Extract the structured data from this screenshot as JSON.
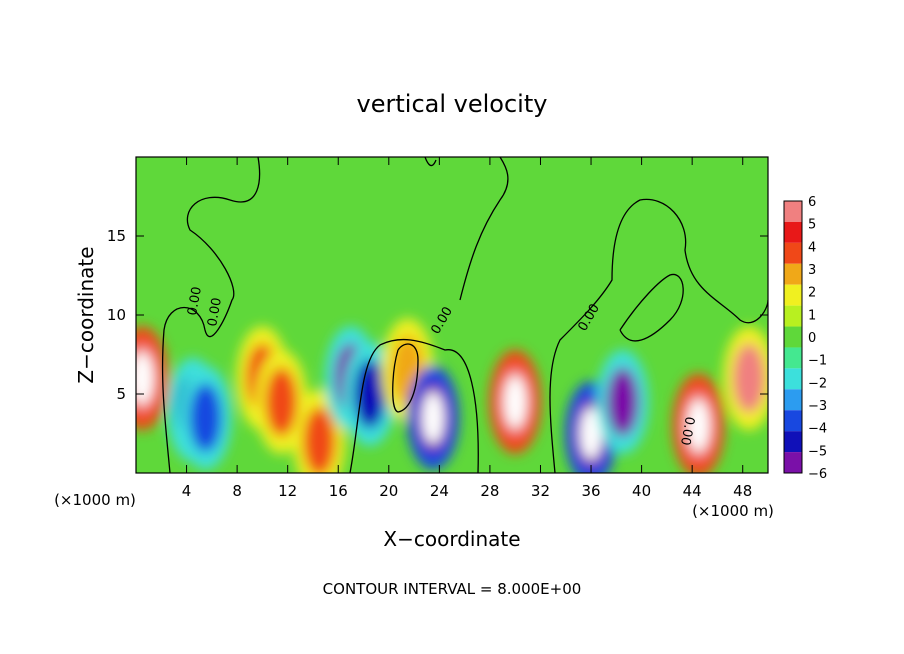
{
  "chart_data": {
    "type": "heatmap",
    "title": "vertical velocity",
    "xlabel": "X−coordinate",
    "ylabel": "Z−coordinate",
    "x_unit_left": "(×1000 m)",
    "x_unit_right": "(×1000 m)",
    "xlim": [
      0,
      50
    ],
    "ylim": [
      0,
      20
    ],
    "x_ticks": [
      4,
      8,
      12,
      16,
      20,
      24,
      28,
      32,
      36,
      40,
      44,
      48
    ],
    "y_ticks": [
      5,
      10,
      15
    ],
    "colorbar_ticks": [
      "6",
      "5",
      "4",
      "3",
      "2",
      "1",
      "0",
      "−1",
      "−2",
      "−3",
      "−4",
      "−5",
      "−6"
    ],
    "colorbar_range": [
      -6,
      6
    ],
    "contour_labels": [
      "0.00",
      "0.00",
      "0.00",
      "0.00",
      "0.00"
    ],
    "footer": "CONTOUR INTERVAL = 8.000E+00",
    "features": [
      {
        "x": 0.5,
        "z": 6.0,
        "w": 8
      },
      {
        "x": 4.5,
        "z": 4.0,
        "w": -5
      },
      {
        "x": 5.5,
        "z": 3.5,
        "w": -4
      },
      {
        "x": 10.0,
        "z": 6.0,
        "w": 4
      },
      {
        "x": 11.5,
        "z": 4.5,
        "w": 4
      },
      {
        "x": 14.5,
        "z": 2.0,
        "w": 4
      },
      {
        "x": 17.0,
        "z": 6.0,
        "w": -6
      },
      {
        "x": 18.5,
        "z": 5.0,
        "w": -5
      },
      {
        "x": 21.5,
        "z": 6.5,
        "w": 3
      },
      {
        "x": 23.5,
        "z": 3.5,
        "w": -7
      },
      {
        "x": 30.0,
        "z": 4.5,
        "w": 9
      },
      {
        "x": 36.0,
        "z": 2.5,
        "w": -7
      },
      {
        "x": 38.5,
        "z": 4.5,
        "w": -6
      },
      {
        "x": 44.5,
        "z": 3.0,
        "w": 8
      },
      {
        "x": 48.5,
        "z": 6.0,
        "w": 6
      }
    ]
  }
}
